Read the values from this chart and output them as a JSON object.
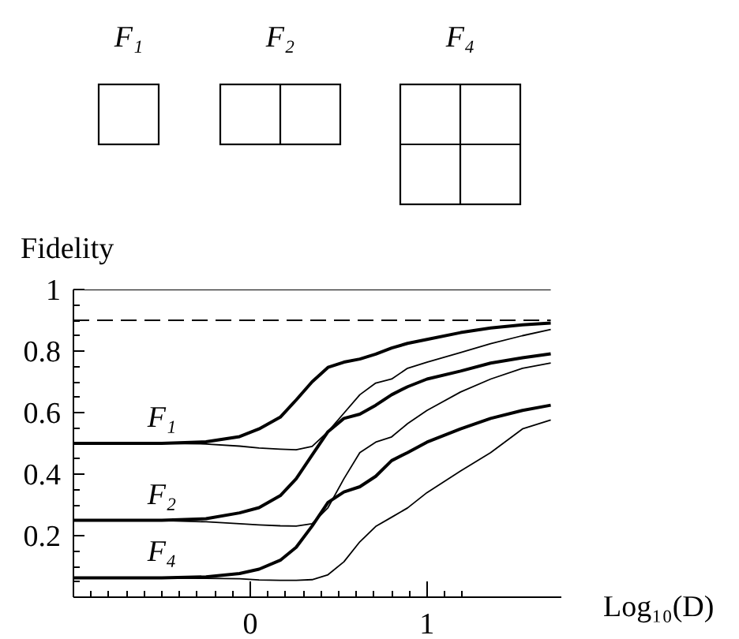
{
  "chart_data": {
    "type": "line",
    "xlabel": "Log₁₀(D)",
    "ylabel": "Fidelity",
    "annotations": [
      "F₁",
      "F₂",
      "F₄",
      "F₁",
      "F₂",
      "F₄"
    ],
    "x": [
      -1,
      -0.5,
      -0.25,
      -0.06,
      0.05,
      0.17,
      0.26,
      0.35,
      0.44,
      0.53,
      0.62,
      0.71,
      0.8,
      0.89,
      1.0,
      1.19,
      1.36,
      1.54,
      1.7
    ],
    "series": [
      {
        "color": "#000000",
        "values": [
          0.5,
          0.5,
          0.505,
          0.522,
          0.547,
          0.585,
          0.641,
          0.7,
          0.747,
          0.764,
          0.774,
          0.79,
          0.81,
          0.825,
          0.838,
          0.86,
          0.875,
          0.885,
          0.891
        ]
      },
      {
        "color": "#000000",
        "values": [
          0.5,
          0.5,
          0.498,
          0.491,
          0.485,
          0.481,
          0.479,
          0.49,
          0.538,
          0.598,
          0.658,
          0.696,
          0.709,
          0.744,
          0.764,
          0.795,
          0.824,
          0.85,
          0.87
        ]
      },
      {
        "color": "#000000",
        "values": [
          0.25,
          0.25,
          0.255,
          0.274,
          0.291,
          0.33,
          0.385,
          0.462,
          0.538,
          0.581,
          0.595,
          0.624,
          0.658,
          0.684,
          0.709,
          0.735,
          0.761,
          0.778,
          0.791
        ]
      },
      {
        "color": "#000000",
        "values": [
          0.25,
          0.249,
          0.245,
          0.239,
          0.235,
          0.232,
          0.231,
          0.239,
          0.291,
          0.385,
          0.47,
          0.504,
          0.521,
          0.564,
          0.607,
          0.667,
          0.709,
          0.744,
          0.761
        ]
      },
      {
        "color": "#000000",
        "values": [
          0.063,
          0.063,
          0.066,
          0.077,
          0.091,
          0.12,
          0.162,
          0.231,
          0.308,
          0.342,
          0.359,
          0.393,
          0.444,
          0.47,
          0.504,
          0.547,
          0.581,
          0.607,
          0.624
        ]
      },
      {
        "color": "#000000",
        "values": [
          0.063,
          0.062,
          0.061,
          0.06,
          0.056,
          0.055,
          0.055,
          0.057,
          0.073,
          0.115,
          0.18,
          0.23,
          0.26,
          0.29,
          0.34,
          0.41,
          0.47,
          0.547,
          0.576
        ]
      }
    ],
    "xlim": [
      -1,
      1.76
    ],
    "ylim": [
      0,
      1
    ],
    "xticks": [
      {
        "value": -0.9,
        "label": null
      },
      {
        "value": -0.8,
        "label": null
      },
      {
        "value": -0.7,
        "label": null
      },
      {
        "value": -0.6,
        "label": null
      },
      {
        "value": -0.5,
        "label": null
      },
      {
        "value": -0.4,
        "label": null
      },
      {
        "value": -0.3,
        "label": null
      },
      {
        "value": -0.2,
        "label": null
      },
      {
        "value": -0.1,
        "label": null
      },
      0,
      {
        "value": 0.1,
        "label": null
      },
      {
        "value": 0.2,
        "label": null
      },
      {
        "value": 0.3,
        "label": null
      },
      {
        "value": 0.4,
        "label": null
      },
      {
        "value": 0.5,
        "label": null
      },
      {
        "value": 0.6,
        "label": null
      },
      {
        "value": 0.7,
        "label": null
      },
      {
        "value": 0.8,
        "label": null
      },
      {
        "value": 0.9,
        "label": null
      },
      1,
      {
        "value": 1.1,
        "label": null
      },
      {
        "value": 1.2,
        "label": null
      }
    ],
    "yticks": [
      {
        "value": 0.05,
        "label": null
      },
      {
        "value": 0.1,
        "label": null
      },
      {
        "value": 0.15,
        "label": null
      },
      0.2,
      {
        "value": 0.25,
        "label": null
      },
      {
        "value": 0.3,
        "label": null
      },
      {
        "value": 0.35,
        "label": null
      },
      0.4,
      {
        "value": 0.45,
        "label": null
      },
      {
        "value": 0.5,
        "label": null
      },
      {
        "value": 0.55,
        "label": null
      },
      0.6,
      {
        "value": 0.65,
        "label": null
      },
      {
        "value": 0.7,
        "label": null
      },
      {
        "value": 0.75,
        "label": null
      },
      0.8,
      {
        "value": 0.85,
        "label": null
      },
      {
        "value": 0.9,
        "label": null
      },
      {
        "value": 0.95,
        "label": null
      },
      1
    ],
    "ref_lines": [
      {
        "axis": "y",
        "value": 1,
        "color": "#000000",
        "line_style": "solid"
      },
      {
        "axis": "y",
        "value": 0.9,
        "color": "#000000",
        "line_style": "dashed"
      }
    ],
    "grid": false
  }
}
